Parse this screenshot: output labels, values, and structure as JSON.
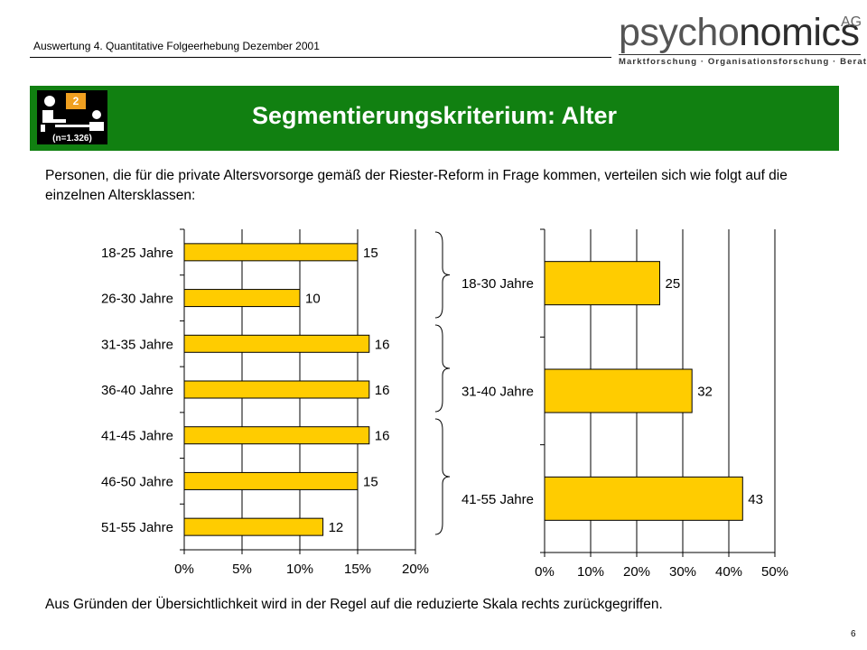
{
  "header": {
    "subtitle": "Auswertung 4. Quantitative Folgeerhebung Dezember 2001",
    "logo_part1": "psycho",
    "logo_part2": "nomics",
    "logo_ag": "AG",
    "logo_tagline": "Marktforschung · Organisationsforschung · Beratung"
  },
  "banner": {
    "title": "Segmentierungskriterium: Alter",
    "badge_number": "2",
    "badge_sample": "(n=1.326)"
  },
  "intro": "Personen, die für die private Altersvorsorge gemäß der Riester-Reform in Frage kommen, verteilen sich wie folgt auf die einzelnen Altersklassen:",
  "outro": "Aus Gründen der Übersichtlichkeit wird in der Regel auf die reduzierte Skala rechts zurückgegriffen.",
  "page_number": "6",
  "colors": {
    "bar": "#FFCC00",
    "banner": "#118011",
    "badge_accent": "#F0A020"
  },
  "chart_data": [
    {
      "type": "bar",
      "orientation": "horizontal",
      "categories": [
        "18-25 Jahre",
        "26-30 Jahre",
        "31-35 Jahre",
        "36-40 Jahre",
        "41-45 Jahre",
        "46-50 Jahre",
        "51-55 Jahre"
      ],
      "values": [
        15,
        10,
        16,
        16,
        16,
        15,
        12
      ],
      "xlim": [
        0,
        20
      ],
      "xticks": [
        "0%",
        "5%",
        "10%",
        "15%",
        "20%"
      ],
      "grid": true
    },
    {
      "type": "bar",
      "orientation": "horizontal",
      "categories": [
        "18-30 Jahre",
        "31-40 Jahre",
        "41-55 Jahre"
      ],
      "values": [
        25,
        32,
        43
      ],
      "xlim": [
        0,
        50
      ],
      "xticks": [
        "0%",
        "10%",
        "20%",
        "30%",
        "40%",
        "50%"
      ],
      "grid": true
    }
  ]
}
